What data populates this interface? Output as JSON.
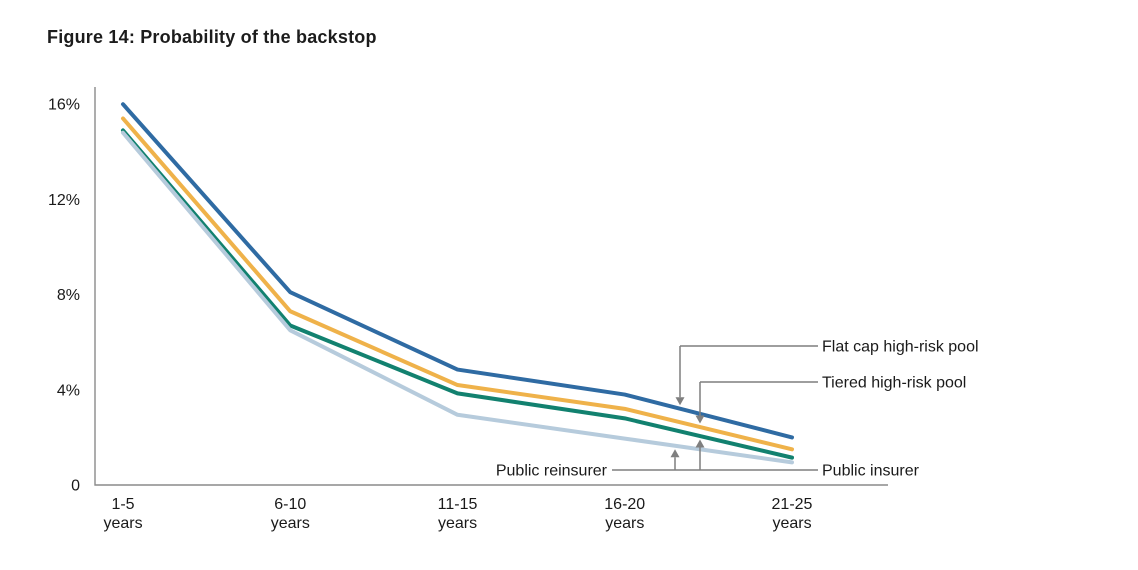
{
  "figure": {
    "title": "Figure 14: Probability of the backstop"
  },
  "chart_data": {
    "type": "line",
    "title": "Figure 14: Probability of the backstop",
    "xlabel": "",
    "ylabel": "",
    "grid": false,
    "legend_position": "callout-annotations-right",
    "ylim": [
      0,
      16
    ],
    "y_ticks": [
      {
        "value": 16,
        "label": "16%"
      },
      {
        "value": 12,
        "label": "12%"
      },
      {
        "value": 8,
        "label": "8%"
      },
      {
        "value": 4,
        "label": "4%"
      },
      {
        "value": 0,
        "label": "0"
      }
    ],
    "categories": [
      "1-5 years",
      "6-10 years",
      "11-15 years",
      "16-20 years",
      "21-25 years"
    ],
    "category_label_lines": [
      [
        "1-5",
        "years"
      ],
      [
        "6-10",
        "years"
      ],
      [
        "11-15",
        "years"
      ],
      [
        "16-20",
        "years"
      ],
      [
        "21-25",
        "years"
      ]
    ],
    "series": [
      {
        "name": "Flat cap high-risk pool",
        "color": "#2f6ba3",
        "values": [
          16.0,
          8.1,
          4.85,
          3.8,
          2.0
        ]
      },
      {
        "name": "Tiered high-risk pool",
        "color": "#efb24a",
        "values": [
          15.4,
          7.3,
          4.2,
          3.2,
          1.5
        ]
      },
      {
        "name": "Public insurer",
        "color": "#12816f",
        "values": [
          14.9,
          6.7,
          3.85,
          2.8,
          1.15
        ]
      },
      {
        "name": "Public reinsurer",
        "color": "#b6cbdc",
        "values": [
          14.8,
          6.5,
          2.95,
          1.95,
          0.95
        ]
      }
    ],
    "annotations": [
      {
        "label": "Flat cap high-risk pool",
        "series": "Flat cap high-risk pool",
        "arrow": "down"
      },
      {
        "label": "Tiered high-risk pool",
        "series": "Tiered high-risk pool",
        "arrow": "down"
      },
      {
        "label": "Public insurer",
        "series": "Public insurer",
        "arrow": "up"
      },
      {
        "label": "Public reinsurer",
        "series": "Public reinsurer",
        "arrow": "up"
      }
    ]
  },
  "colors": {
    "axis": "#8a8a8a",
    "callout": "#7f7f7f",
    "text": "#1a1a1a",
    "title": "#1c1c1c",
    "background": "#ffffff"
  }
}
